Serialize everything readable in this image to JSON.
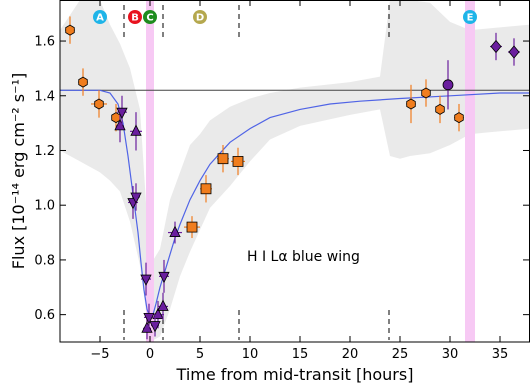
{
  "chart_data": {
    "type": "scatter",
    "title": "",
    "xlabel": "Time from mid-transit [hours]",
    "ylabel": "Flux [10⁻¹⁴ erg cm⁻² s⁻¹]",
    "xlim": [
      -9,
      38
    ],
    "ylim": [
      0.5,
      1.75
    ],
    "xticks": [
      -5,
      0,
      5,
      10,
      15,
      20,
      25,
      30,
      35
    ],
    "yticks": [
      0.6,
      0.8,
      1.0,
      1.2,
      1.4,
      1.6
    ],
    "annotation": "H I Lα blue wing",
    "grid": false,
    "baseline": 1.42,
    "bands": [
      {
        "x0": -0.4,
        "x1": 0.4,
        "color": "#f7c9f4"
      },
      {
        "x0": 31.5,
        "x1": 32.5,
        "color": "#f7c9f4"
      }
    ],
    "dashed_times": [
      -2.6,
      1.3,
      8.9,
      23.9
    ],
    "event_markers": [
      {
        "label": "A",
        "x": -5.0,
        "color": "#1eb4e8"
      },
      {
        "label": "B",
        "x": -1.5,
        "color": "#e8121e"
      },
      {
        "label": "C",
        "x": 0.0,
        "color": "#1e8c1e"
      },
      {
        "label": "D",
        "x": 5.0,
        "color": "#b5a84e"
      },
      {
        "label": "E",
        "x": 32.0,
        "color": "#1eb4e8"
      }
    ],
    "model_curve": {
      "name": "model",
      "color": "#5064e6",
      "x": [
        -9,
        -5,
        -4,
        -3.2,
        -2.7,
        -2.2,
        -1.7,
        -1.2,
        -0.9,
        -0.6,
        -0.3,
        0,
        0.3,
        0.6,
        1.0,
        1.5,
        2,
        2.5,
        3,
        4,
        5,
        6,
        7,
        8,
        10,
        12,
        15,
        18,
        21,
        25,
        30,
        35,
        38
      ],
      "y": [
        1.42,
        1.42,
        1.41,
        1.37,
        1.3,
        1.18,
        1.04,
        0.9,
        0.79,
        0.69,
        0.62,
        0.59,
        0.6,
        0.64,
        0.7,
        0.76,
        0.82,
        0.88,
        0.93,
        1.02,
        1.09,
        1.15,
        1.19,
        1.23,
        1.28,
        1.32,
        1.35,
        1.37,
        1.38,
        1.39,
        1.4,
        1.41,
        1.41
      ]
    },
    "envelope": {
      "x": [
        -9,
        -7,
        -5,
        -4,
        -3,
        -2,
        -1,
        0,
        1,
        2,
        3,
        4,
        5,
        6,
        8,
        10,
        12,
        15,
        20,
        23,
        24,
        25,
        26,
        28,
        30,
        32,
        35,
        38
      ],
      "upper": [
        1.64,
        1.75,
        1.75,
        1.66,
        1.59,
        1.5,
        1.35,
        0.78,
        0.84,
        1.02,
        1.12,
        1.22,
        1.26,
        1.31,
        1.36,
        1.39,
        1.41,
        1.43,
        1.45,
        1.47,
        1.75,
        1.75,
        1.75,
        1.74,
        1.67,
        1.64,
        1.65,
        1.66
      ],
      "lower": [
        1.2,
        1.16,
        1.12,
        1.09,
        1.05,
        0.94,
        0.78,
        0.5,
        0.52,
        0.62,
        0.74,
        0.83,
        0.91,
        0.99,
        1.07,
        1.16,
        1.24,
        1.29,
        1.33,
        1.35,
        1.18,
        1.17,
        1.18,
        1.19,
        1.22,
        1.26,
        1.27,
        1.28
      ]
    },
    "series": [
      {
        "name": "orange-hexagons",
        "marker": "hexagon",
        "color": "#f07d1e",
        "points": [
          {
            "x": -8.0,
            "y": 1.64,
            "ex": 0.5,
            "ey": 0.05
          },
          {
            "x": -6.7,
            "y": 1.45,
            "ex": 0.5,
            "ey": 0.05
          },
          {
            "x": -5.1,
            "y": 1.37,
            "ex": 0.8,
            "ey": 0.05
          },
          {
            "x": -3.4,
            "y": 1.32,
            "ex": 0.4,
            "ey": 0.05
          },
          {
            "x": 26.1,
            "y": 1.37,
            "ex": 0.5,
            "ey": 0.07
          },
          {
            "x": 27.6,
            "y": 1.41,
            "ex": 0.4,
            "ey": 0.05
          },
          {
            "x": 29.0,
            "y": 1.35,
            "ex": 0.4,
            "ey": 0.05
          },
          {
            "x": 30.9,
            "y": 1.32,
            "ex": 0.5,
            "ey": 0.05
          }
        ]
      },
      {
        "name": "orange-squares",
        "marker": "square",
        "color": "#f07d1e",
        "points": [
          {
            "x": 4.2,
            "y": 0.92,
            "ex": 0.8,
            "ey": 0.04
          },
          {
            "x": 5.6,
            "y": 1.06,
            "ex": 0.6,
            "ey": 0.05
          },
          {
            "x": 7.3,
            "y": 1.17,
            "ex": 0.6,
            "ey": 0.05
          },
          {
            "x": 8.8,
            "y": 1.16,
            "ex": 0.7,
            "ey": 0.05
          }
        ]
      },
      {
        "name": "purple-circles",
        "marker": "circle",
        "color": "#6a1e9e",
        "points": [
          {
            "x": 29.8,
            "y": 1.44,
            "ex": 0.2,
            "ey": 0.09
          }
        ]
      },
      {
        "name": "purple-diamonds",
        "marker": "diamond",
        "color": "#6a1e9e",
        "points": [
          {
            "x": 34.6,
            "y": 1.58,
            "ex": 0.6,
            "ey": 0.05
          },
          {
            "x": 36.4,
            "y": 1.56,
            "ex": 0.6,
            "ey": 0.05
          }
        ]
      },
      {
        "name": "purple-triangles-up",
        "marker": "triangle-up",
        "color": "#6a1e9e",
        "points": [
          {
            "x": -3.0,
            "y": 1.29,
            "ex": 0.4,
            "ey": 0.06
          },
          {
            "x": -1.4,
            "y": 1.27,
            "ex": 0.6,
            "ey": 0.07
          },
          {
            "x": -0.3,
            "y": 0.55,
            "ex": 0.4,
            "ey": 0.04
          },
          {
            "x": 0.8,
            "y": 0.6,
            "ex": 0.6,
            "ey": 0.05
          },
          {
            "x": 1.3,
            "y": 0.63,
            "ex": 0.5,
            "ey": 0.05
          },
          {
            "x": 2.5,
            "y": 0.9,
            "ex": 0.7,
            "ey": 0.04
          }
        ]
      },
      {
        "name": "purple-triangles-down",
        "marker": "triangle-down",
        "color": "#6a1e9e",
        "points": [
          {
            "x": -2.8,
            "y": 1.34,
            "ex": 0.5,
            "ey": 0.06
          },
          {
            "x": -1.7,
            "y": 1.01,
            "ex": 0.5,
            "ey": 0.06
          },
          {
            "x": -1.4,
            "y": 1.03,
            "ex": 0.4,
            "ey": 0.05
          },
          {
            "x": -0.4,
            "y": 0.73,
            "ex": 0.5,
            "ey": 0.06
          },
          {
            "x": -0.1,
            "y": 0.59,
            "ex": 0.5,
            "ey": 0.05
          },
          {
            "x": 0.5,
            "y": 0.56,
            "ex": 0.4,
            "ey": 0.04
          },
          {
            "x": 1.4,
            "y": 0.74,
            "ex": 0.5,
            "ey": 0.06
          }
        ]
      }
    ]
  }
}
